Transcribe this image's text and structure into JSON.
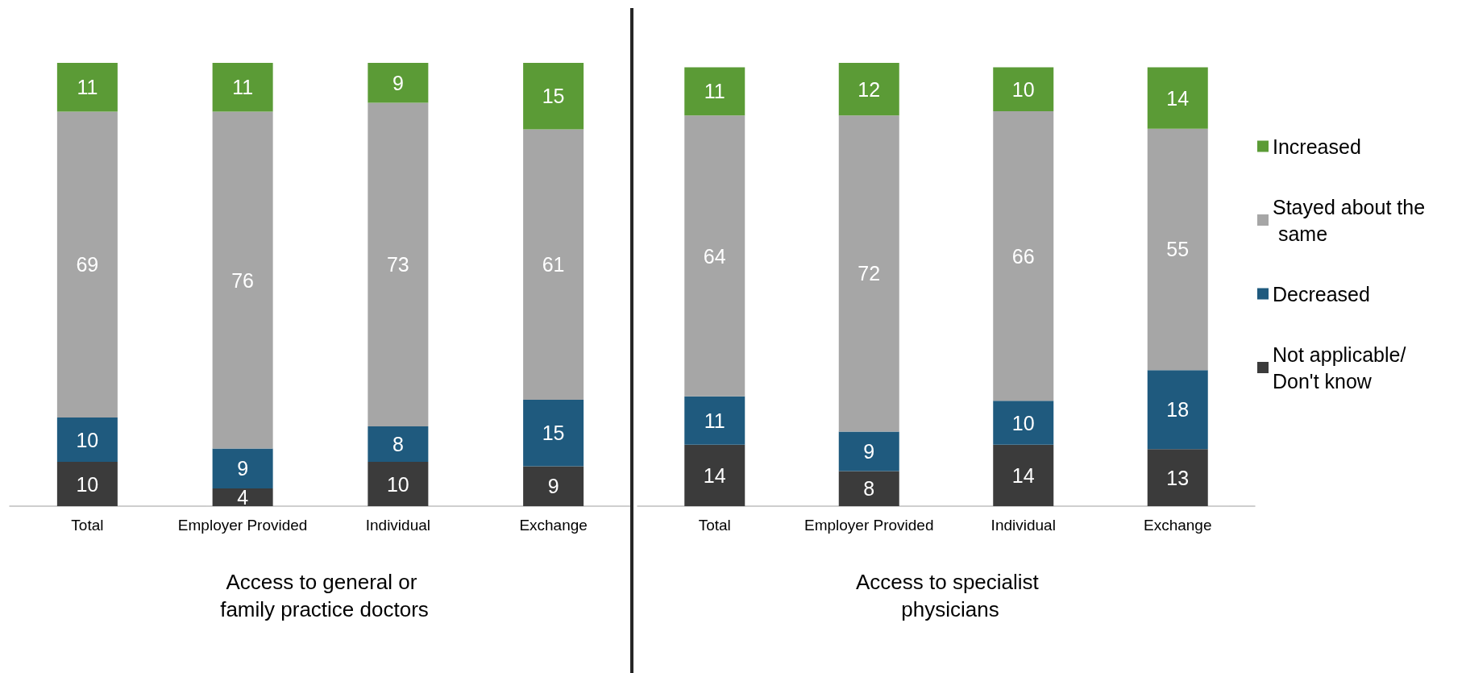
{
  "chart_data": [
    {
      "type": "bar",
      "stacked": true,
      "data_labels": true,
      "legend": false,
      "grid": false,
      "tick_labels": "x",
      "xlabel": "Access to general or family practice doctors",
      "categories": [
        "Total",
        "Employer Provided",
        "Individual",
        "Exchange"
      ],
      "series": [
        {
          "color": "#3b3b3b",
          "values": [
            10,
            4,
            10,
            9
          ]
        },
        {
          "color": "#1f5a7e",
          "values": [
            10,
            9,
            8,
            15
          ]
        },
        {
          "color": "#a6a6a6",
          "values": [
            69,
            76,
            73,
            61
          ]
        },
        {
          "color": "#5b9b36",
          "values": [
            11,
            11,
            9,
            15
          ]
        }
      ]
    },
    {
      "type": "bar",
      "stacked": true,
      "data_labels": true,
      "legend": "right",
      "grid": false,
      "tick_labels": "x",
      "xlabel": "Access to specialist physicians",
      "categories": [
        "Total",
        "Employer Provided",
        "Individual",
        "Exchange"
      ],
      "series": [
        {
          "name": "Not applicable/ Don't know",
          "color": "#3b3b3b",
          "values": [
            14,
            8,
            14,
            13
          ]
        },
        {
          "name": "Decreased",
          "color": "#1f5a7e",
          "values": [
            11,
            9,
            10,
            18
          ]
        },
        {
          "name": "Stayed about the same",
          "color": "#a6a6a6",
          "values": [
            64,
            72,
            66,
            55
          ]
        },
        {
          "name": "Increased",
          "color": "#5b9b36",
          "values": [
            11,
            12,
            10,
            14
          ]
        }
      ]
    }
  ]
}
